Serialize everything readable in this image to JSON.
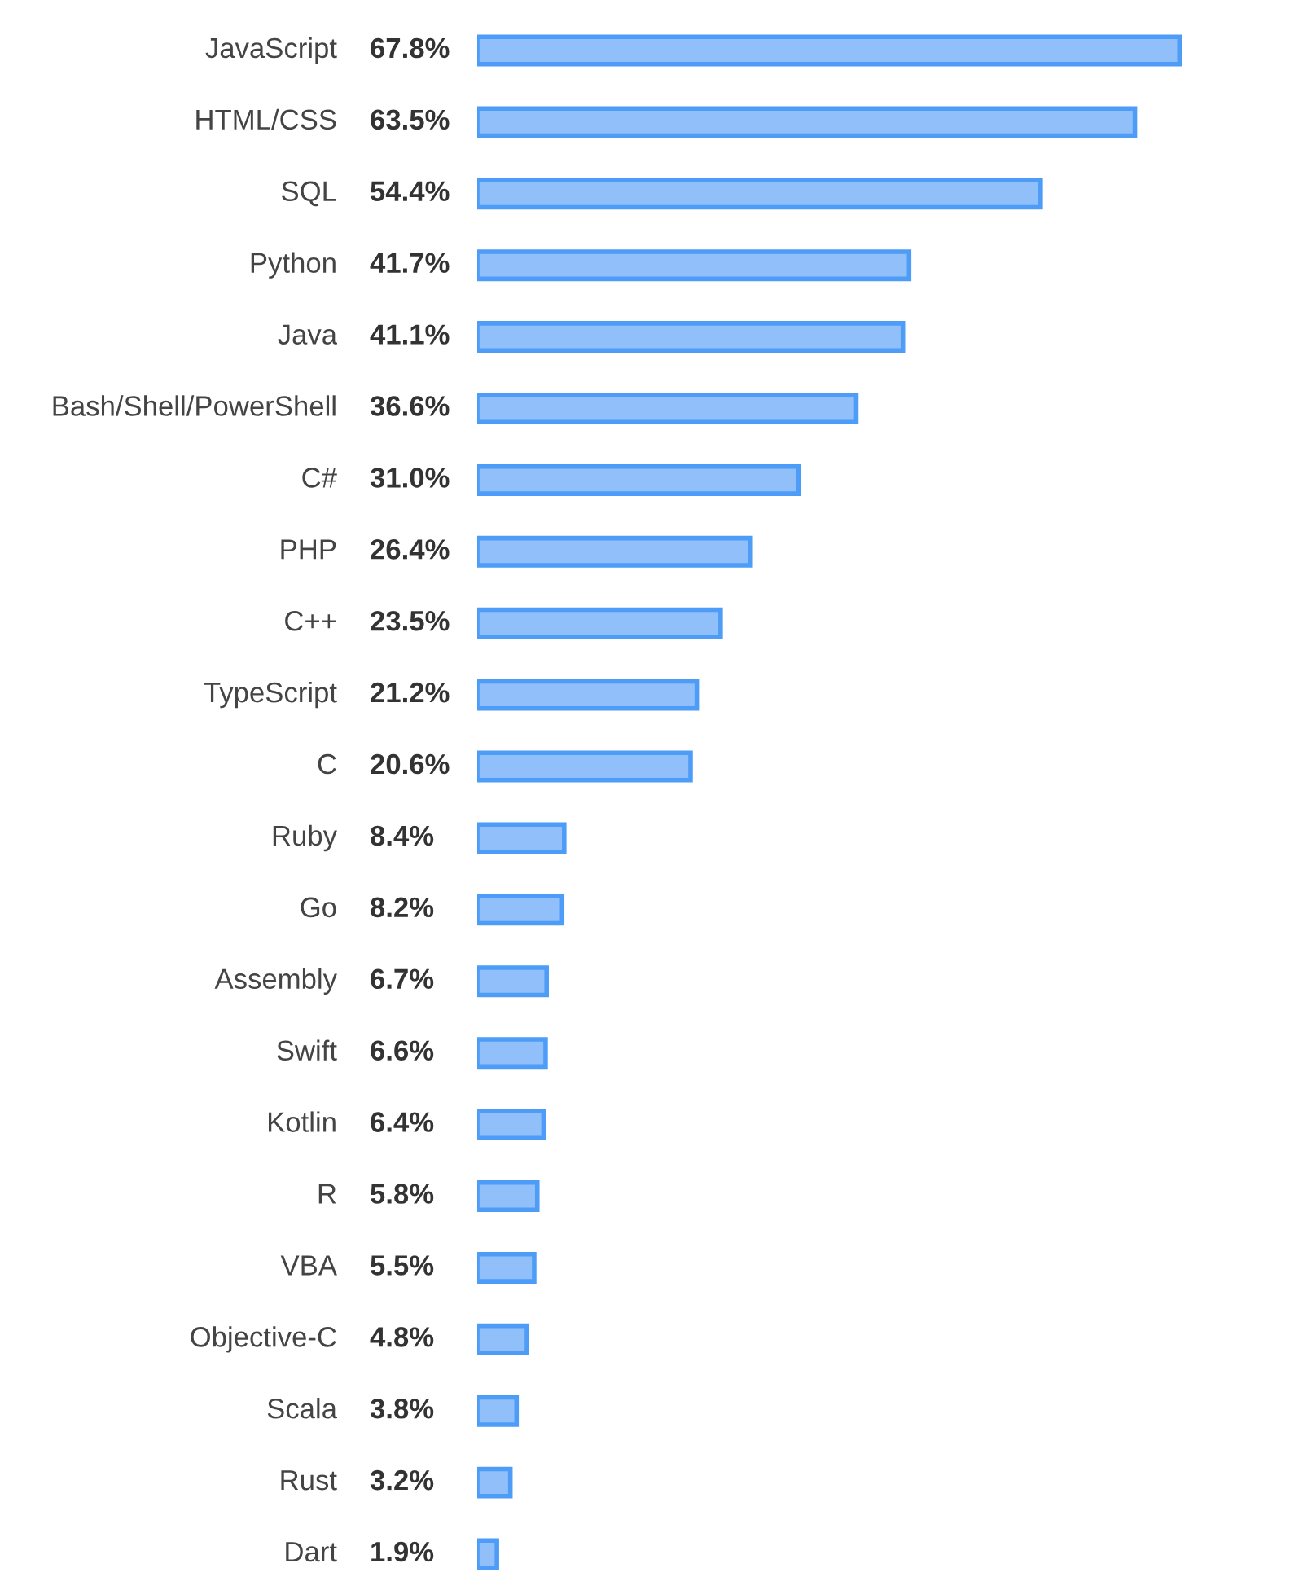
{
  "chart_data": {
    "type": "bar",
    "orientation": "horizontal",
    "categories": [
      "JavaScript",
      "HTML/CSS",
      "SQL",
      "Python",
      "Java",
      "Bash/Shell/PowerShell",
      "C#",
      "PHP",
      "C++",
      "TypeScript",
      "C",
      "Ruby",
      "Go",
      "Assembly",
      "Swift",
      "Kotlin",
      "R",
      "VBA",
      "Objective-C",
      "Scala",
      "Rust",
      "Dart"
    ],
    "values": [
      67.8,
      63.5,
      54.4,
      41.7,
      41.1,
      36.6,
      31.0,
      26.4,
      23.5,
      21.2,
      20.6,
      8.4,
      8.2,
      6.7,
      6.6,
      6.4,
      5.8,
      5.5,
      4.8,
      3.8,
      3.2,
      1.9
    ],
    "value_labels": [
      "67.8%",
      "63.5%",
      "54.4%",
      "41.7%",
      "41.1%",
      "36.6%",
      "31.0%",
      "26.4%",
      "23.5%",
      "21.2%",
      "20.6%",
      "8.4%",
      "8.2%",
      "6.7%",
      "6.6%",
      "6.4%",
      "5.8%",
      "5.5%",
      "4.8%",
      "3.8%",
      "3.2%",
      "1.9%"
    ],
    "color": "#91bff9",
    "tick_labels": "y"
  }
}
